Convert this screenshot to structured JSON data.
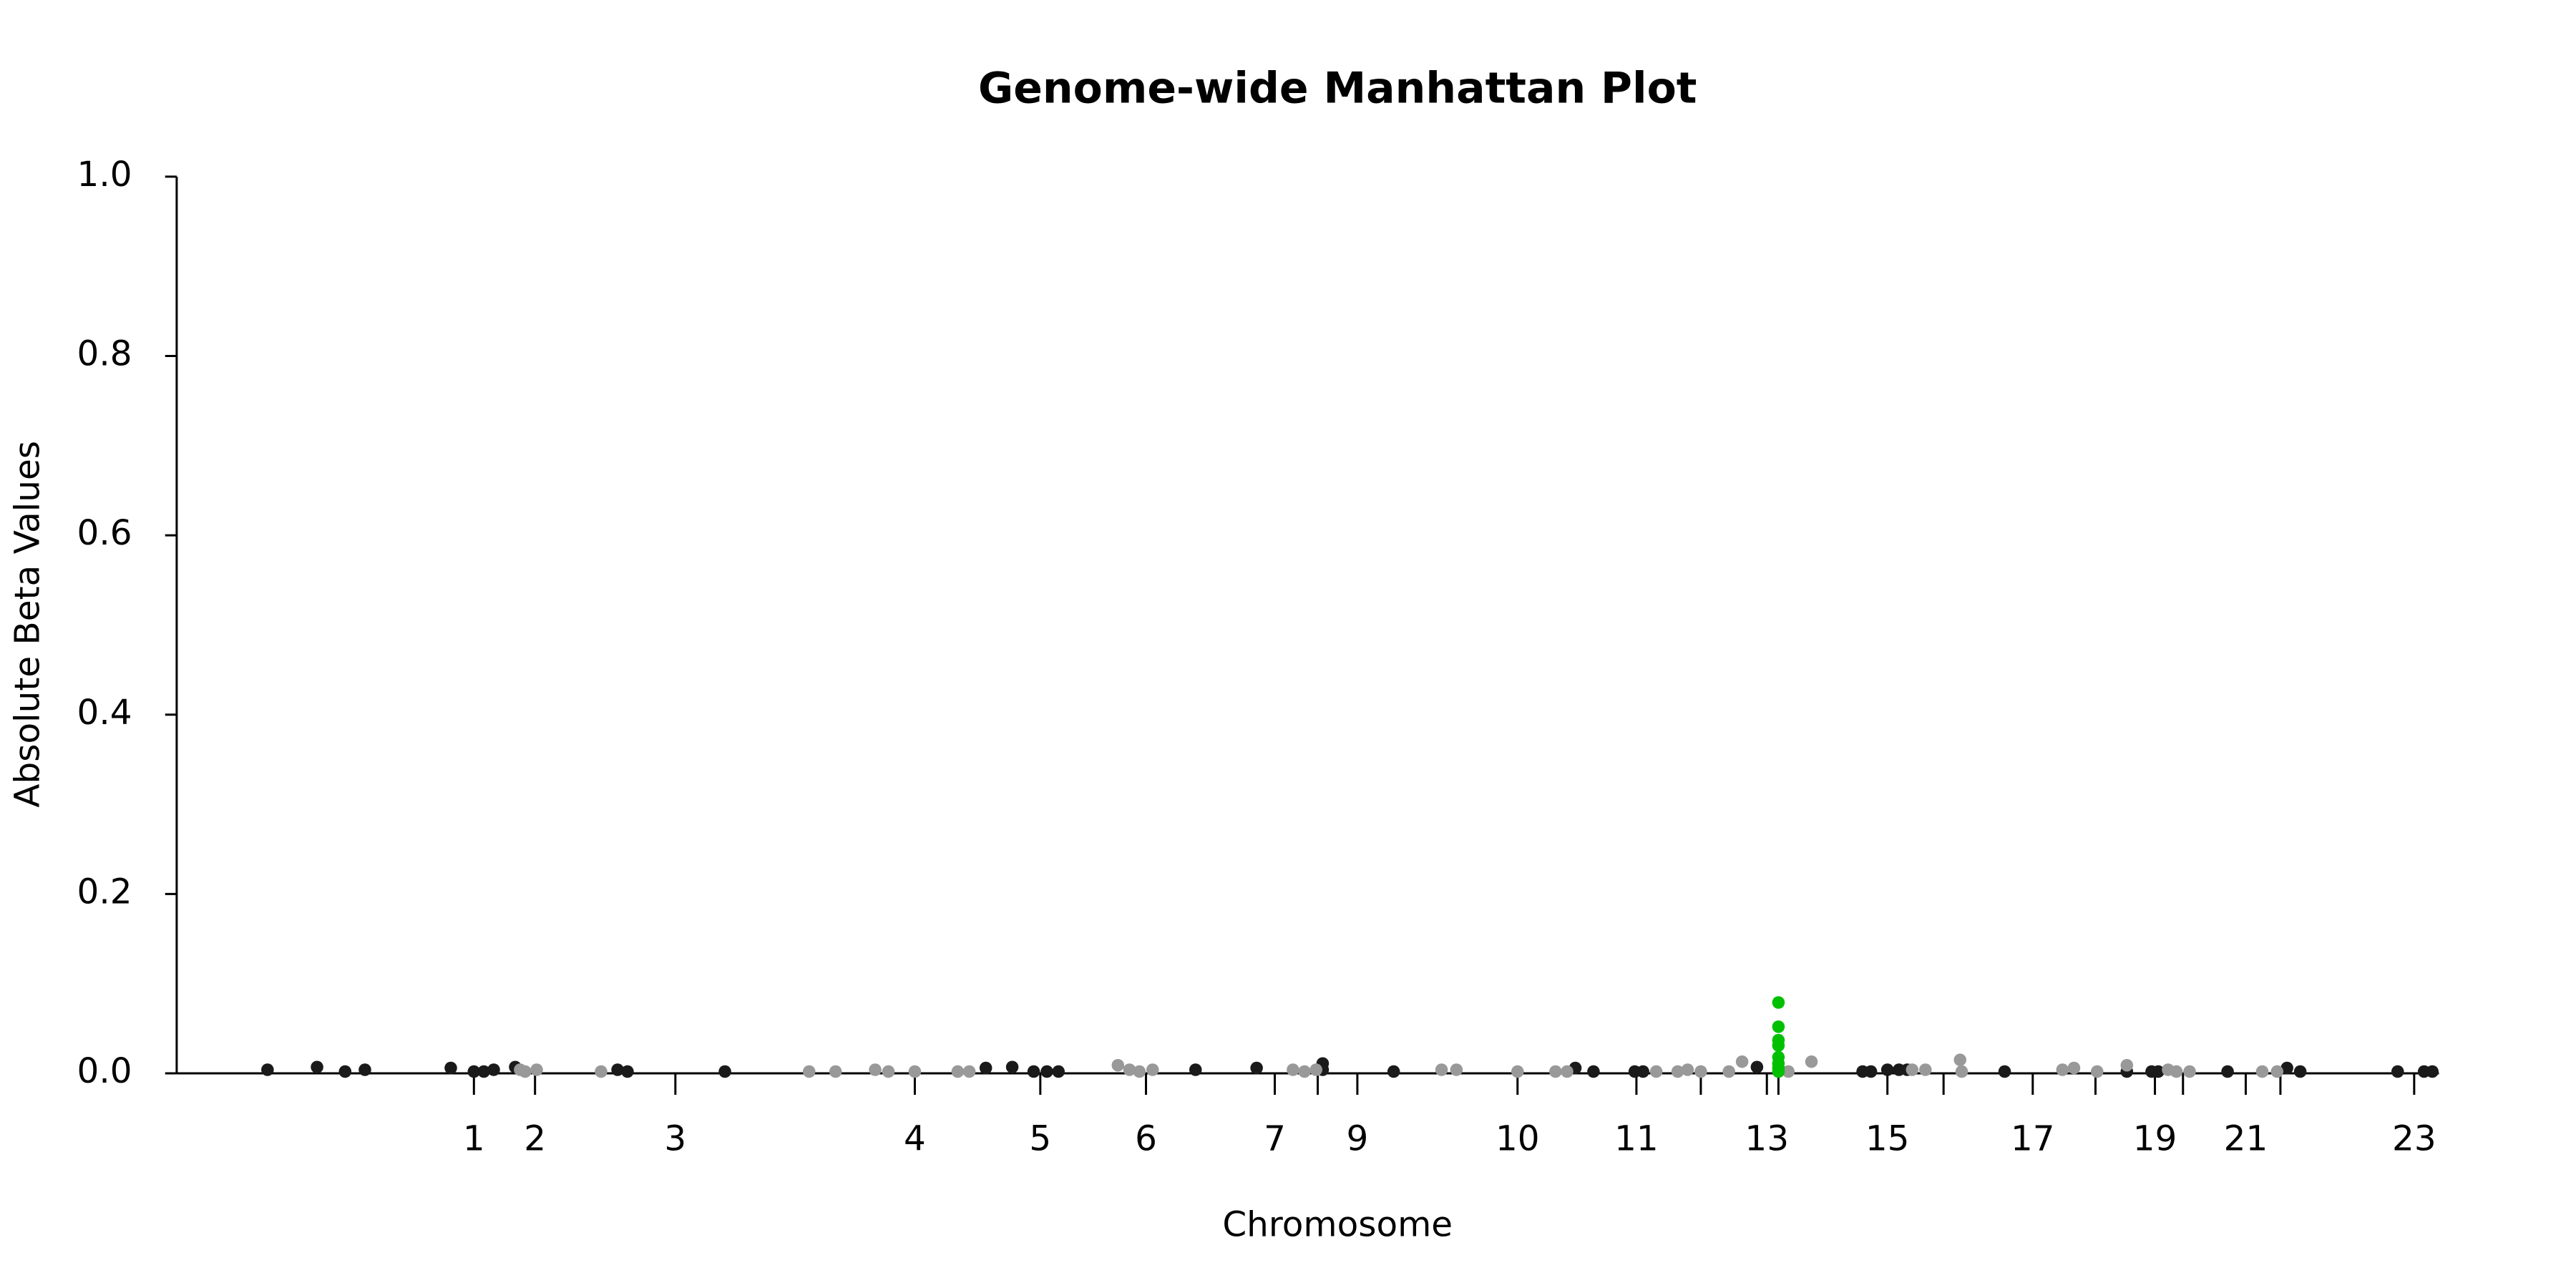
{
  "chart_data": {
    "type": "scatter",
    "title": "Genome-wide Manhattan Plot",
    "x_label": "Chromosome",
    "y_label": "Absolute Beta Values",
    "xlim": [
      0,
      1400
    ],
    "ylim": [
      0,
      1
    ],
    "yticks": [
      {
        "value": 0,
        "label": "0.0"
      },
      0.2,
      0.4,
      0.6,
      0.8,
      {
        "value": 1,
        "label": "1.0"
      }
    ],
    "xticks": [
      {
        "value": 187,
        "label": "1"
      },
      {
        "value": 224,
        "label": "2"
      },
      {
        "value": 309,
        "label": "3"
      },
      {
        "value": 454,
        "label": "4"
      },
      {
        "value": 530,
        "label": "5"
      },
      {
        "value": 594,
        "label": "6"
      },
      {
        "value": 672,
        "label": "7"
      },
      {
        "value": 698,
        "label": null
      },
      {
        "value": 722,
        "label": "9"
      },
      {
        "value": 819,
        "label": "10"
      },
      {
        "value": 891,
        "label": "11"
      },
      {
        "value": 930,
        "label": null
      },
      {
        "value": 970,
        "label": "13"
      },
      {
        "value": 977,
        "label": null
      },
      {
        "value": 1043,
        "label": "15"
      },
      {
        "value": 1077,
        "label": null
      },
      {
        "value": 1131,
        "label": "17"
      },
      {
        "value": 1169,
        "label": null
      },
      {
        "value": 1205,
        "label": "19"
      },
      {
        "value": 1222,
        "label": null
      },
      {
        "value": 1260,
        "label": "21"
      },
      {
        "value": 1281,
        "label": null
      },
      {
        "value": 1362,
        "label": "23"
      }
    ],
    "series": [
      {
        "color": "#1a1a1a",
        "x": [
          62,
          92,
          109,
          121,
          173,
          187,
          193,
          199,
          212,
          274,
          280,
          339,
          497,
          513,
          526,
          534,
          541,
          624,
          661,
          701,
          701,
          744,
          854,
          865,
          890,
          895,
          964,
          1028,
          1033,
          1043,
          1050,
          1055,
          1114,
          1188,
          1203,
          1207,
          1249,
          1285,
          1293,
          1352,
          1368,
          1373
        ],
        "values": [
          0.004,
          0.007,
          0.002,
          0.004,
          0.006,
          0.002,
          0.002,
          0.004,
          0.007,
          0.004,
          0.002,
          0.002,
          0.006,
          0.007,
          0.002,
          0.002,
          0.002,
          0.004,
          0.006,
          0.011,
          0.004,
          0.002,
          0.006,
          0.002,
          0.002,
          0.002,
          0.007,
          0.002,
          0.002,
          0.004,
          0.004,
          0.004,
          0.002,
          0.002,
          0.002,
          0.002,
          0.002,
          0.006,
          0.002,
          0.002,
          0.002,
          0.002
        ]
      },
      {
        "color": "#999999",
        "x": [
          215,
          218,
          225,
          264,
          390,
          406,
          430,
          438,
          454,
          480,
          487,
          577,
          584,
          590,
          598,
          683,
          690,
          697,
          773,
          782,
          819,
          842,
          849,
          903,
          916,
          922,
          930,
          947,
          955,
          983,
          997,
          1058,
          1066,
          1087,
          1088,
          1149,
          1156,
          1170,
          1188,
          1213,
          1218,
          1226,
          1270,
          1279
        ],
        "values": [
          0.004,
          0.002,
          0.004,
          0.002,
          0.002,
          0.002,
          0.004,
          0.002,
          0.002,
          0.002,
          0.002,
          0.009,
          0.004,
          0.002,
          0.004,
          0.004,
          0.002,
          0.004,
          0.004,
          0.004,
          0.002,
          0.002,
          0.002,
          0.002,
          0.002,
          0.004,
          0.002,
          0.002,
          0.013,
          0.002,
          0.013,
          0.004,
          0.004,
          0.015,
          0.002,
          0.004,
          0.006,
          0.002,
          0.009,
          0.004,
          0.002,
          0.002,
          0.002,
          0.002
        ]
      },
      {
        "color": "#00c000",
        "x": [
          977,
          977,
          977,
          977,
          977,
          977,
          977,
          977
        ],
        "values": [
          0.079,
          0.052,
          0.037,
          0.031,
          0.018,
          0.011,
          0.006,
          0.002
        ]
      }
    ]
  }
}
